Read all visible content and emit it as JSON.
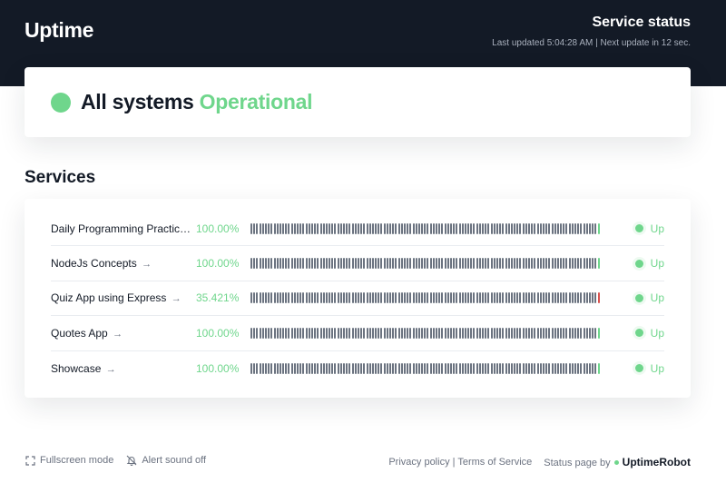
{
  "header": {
    "brand": "Uptime",
    "title": "Service status",
    "last_updated": "Last updated 5:04:28 AM | Next update in 12 sec."
  },
  "overall": {
    "prefix": "All systems",
    "status": "Operational",
    "color": "#6fd68c"
  },
  "services": {
    "title": "Services",
    "items": [
      {
        "name": "Daily Programming Practic…",
        "arrow": "",
        "uptime": "100.00%",
        "status": "Up",
        "last_bar": "green"
      },
      {
        "name": "NodeJs Concepts",
        "arrow": "→",
        "uptime": "100.00%",
        "status": "Up",
        "last_bar": "green"
      },
      {
        "name": "Quiz App using Express",
        "arrow": "→",
        "uptime": "35.421%",
        "status": "Up",
        "last_bar": "red"
      },
      {
        "name": "Quotes App",
        "arrow": "→",
        "uptime": "100.00%",
        "status": "Up",
        "last_bar": "green"
      },
      {
        "name": "Showcase",
        "arrow": "→",
        "uptime": "100.00%",
        "status": "Up",
        "last_bar": "green"
      }
    ]
  },
  "footer": {
    "fullscreen": "Fullscreen mode",
    "alert": "Alert sound off",
    "privacy": "Privacy policy",
    "separator": "|",
    "terms": "Terms of Service",
    "status_page_by": "Status page by",
    "provider": "UptimeRobot"
  },
  "colors": {
    "dark": "#131a26",
    "green": "#6fd68c",
    "red": "#d9534f",
    "bar": "#6b7380"
  }
}
